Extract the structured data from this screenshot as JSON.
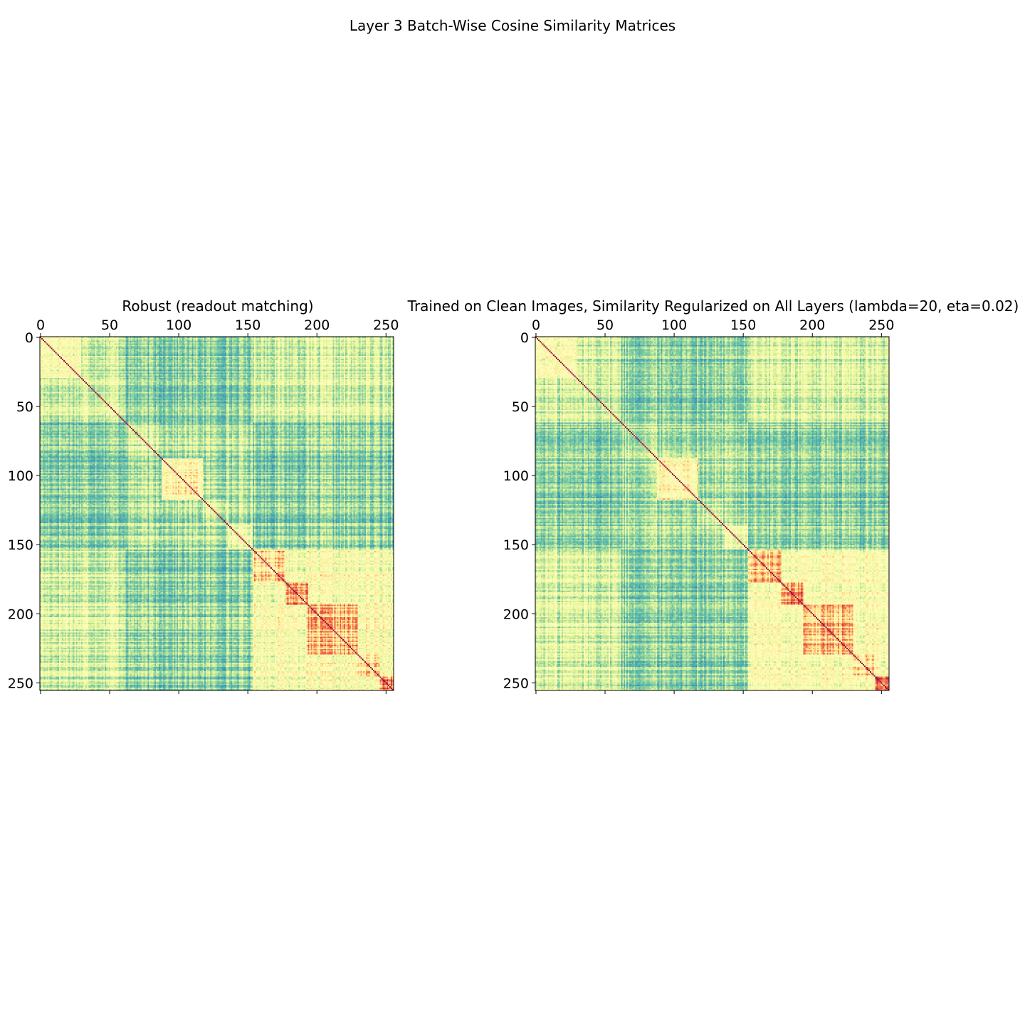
{
  "figure": {
    "title": "Layer 3 Batch-Wise Cosine Similarity Matrices"
  },
  "colors": {
    "colormap": "Spectral_r",
    "low": "#2b8cbe",
    "mid": "#ffffbf",
    "high": "#9e0142"
  },
  "chart_data": [
    {
      "type": "heatmap",
      "title": "Robust (readout matching)",
      "size": 256,
      "x_ticks": [
        0,
        50,
        100,
        150,
        200,
        250
      ],
      "y_ticks": [
        0,
        50,
        100,
        150,
        200,
        250
      ],
      "xlim": [
        0,
        256
      ],
      "ylim": [
        256,
        0
      ],
      "x_axis_position": "top",
      "diagonal_value": 1.0,
      "blocks": [
        {
          "range": [
            0,
            30
          ],
          "value": 0.62
        },
        {
          "range": [
            30,
            62
          ],
          "value": 0.52
        },
        {
          "range": [
            62,
            88
          ],
          "value": 0.48
        },
        {
          "range": [
            88,
            118
          ],
          "value": 0.66
        },
        {
          "range": [
            118,
            136
          ],
          "value": 0.5
        },
        {
          "range": [
            136,
            154
          ],
          "value": 0.56
        },
        {
          "range": [
            154,
            178
          ],
          "value": 0.74
        },
        {
          "range": [
            178,
            194
          ],
          "value": 0.84
        },
        {
          "range": [
            194,
            230
          ],
          "value": 0.74
        },
        {
          "range": [
            230,
            246
          ],
          "value": 0.7
        },
        {
          "range": [
            246,
            256
          ],
          "value": 0.86
        }
      ],
      "low_similarity_band": [
        62,
        154
      ],
      "background_value": 0.5
    },
    {
      "type": "heatmap",
      "title": "Trained on Clean Images, Similarity Regularized on All Layers (lambda=20, eta=0.02)",
      "size": 256,
      "x_ticks": [
        0,
        50,
        100,
        150,
        200,
        250
      ],
      "y_ticks": [
        0,
        50,
        100,
        150,
        200,
        250
      ],
      "xlim": [
        0,
        256
      ],
      "ylim": [
        256,
        0
      ],
      "x_axis_position": "top",
      "diagonal_value": 1.0,
      "blocks": [
        {
          "range": [
            0,
            30
          ],
          "value": 0.6
        },
        {
          "range": [
            30,
            62
          ],
          "value": 0.5
        },
        {
          "range": [
            62,
            88
          ],
          "value": 0.47
        },
        {
          "range": [
            88,
            118
          ],
          "value": 0.66
        },
        {
          "range": [
            118,
            136
          ],
          "value": 0.5
        },
        {
          "range": [
            136,
            154
          ],
          "value": 0.55
        },
        {
          "range": [
            154,
            178
          ],
          "value": 0.75
        },
        {
          "range": [
            178,
            194
          ],
          "value": 0.84
        },
        {
          "range": [
            194,
            230
          ],
          "value": 0.75
        },
        {
          "range": [
            230,
            246
          ],
          "value": 0.72
        },
        {
          "range": [
            246,
            256
          ],
          "value": 0.86
        }
      ],
      "low_similarity_band": [
        62,
        154
      ],
      "background_value": 0.5
    }
  ]
}
